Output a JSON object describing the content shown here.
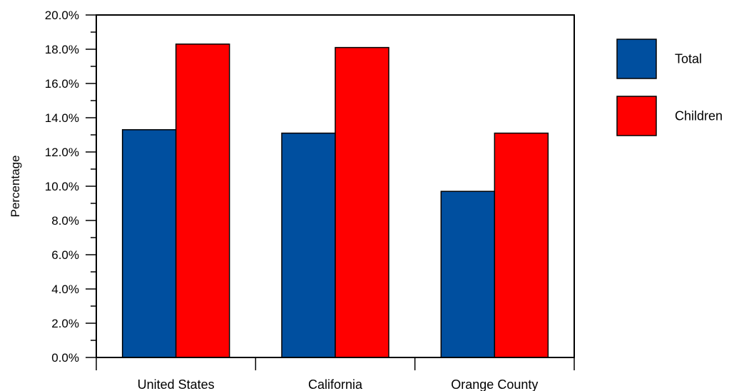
{
  "chart_data": {
    "type": "bar",
    "categories": [
      "United States",
      "California",
      "Orange County"
    ],
    "series": [
      {
        "name": "Total",
        "values": [
          13.3,
          13.1,
          9.7
        ],
        "color": "#004f9f"
      },
      {
        "name": "Children",
        "values": [
          18.3,
          18.1,
          13.1
        ],
        "color": "#ff0000"
      }
    ],
    "ylabel": "Percentage",
    "xlabel": "",
    "ylim": [
      0,
      20
    ],
    "yticks": [
      "0.0%",
      "2.0%",
      "4.0%",
      "6.0%",
      "8.0%",
      "10.0%",
      "12.0%",
      "14.0%",
      "16.0%",
      "18.0%",
      "20.0%"
    ],
    "legend_position": "right",
    "grid": false
  }
}
